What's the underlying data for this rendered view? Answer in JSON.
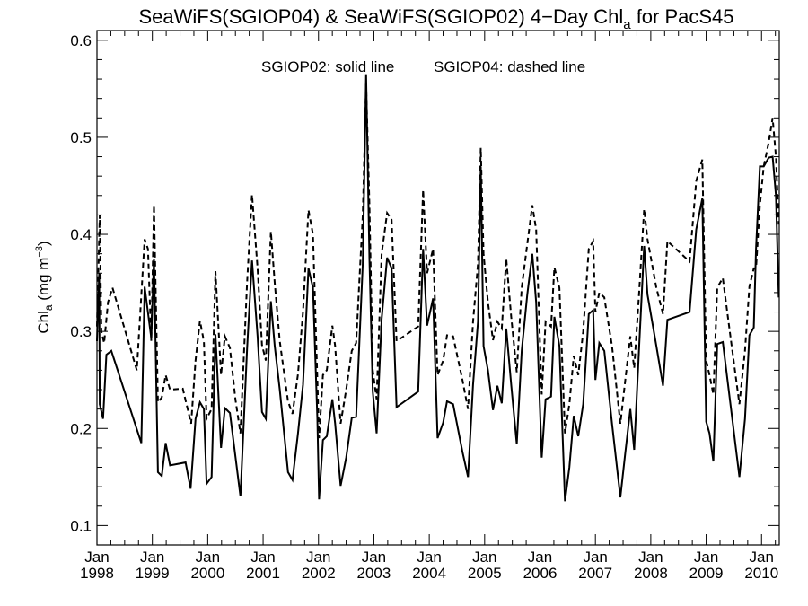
{
  "chart_data": {
    "type": "line",
    "title_main": "SeaWiFS(SGIOP04) & SeaWiFS(SGIOP02) 4−Day Chl",
    "title_sub": "a",
    "title_tail": " for PacS45",
    "ylabel_main": "Chl",
    "ylabel_sub": "a",
    "ylabel_unit": " (mg m",
    "ylabel_sup": "−3",
    "ylabel_close": ")",
    "annotation_solid": "SGIOP02: solid line",
    "annotation_dashed": "SGIOP04: dashed line",
    "xlim": [
      1998.0,
      2010.32
    ],
    "ylim": [
      0.08,
      0.61
    ],
    "y_ticks": [
      0.1,
      0.2,
      0.3,
      0.4,
      0.5,
      0.6
    ],
    "y_tick_labels": [
      "0.1",
      "0.2",
      "0.3",
      "0.4",
      "0.5",
      "0.6"
    ],
    "x_ticks": [
      1998,
      1999,
      2000,
      2001,
      2002,
      2003,
      2004,
      2005,
      2006,
      2007,
      2008,
      2009,
      2010
    ],
    "x_tick_month": "Jan",
    "x_tick_years": [
      "1998",
      "1999",
      "2000",
      "2001",
      "2002",
      "2003",
      "2004",
      "2005",
      "2006",
      "2007",
      "2008",
      "2009",
      "2010"
    ],
    "series": [
      {
        "name": "SGIOP02",
        "style": "solid",
        "points": [
          [
            1998.0,
            0.29
          ],
          [
            1998.04,
            0.36
          ],
          [
            1998.05,
            0.225
          ],
          [
            1998.11,
            0.21
          ],
          [
            1998.17,
            0.276
          ],
          [
            1998.26,
            0.28
          ],
          [
            1998.8,
            0.185
          ],
          [
            1998.86,
            0.346
          ],
          [
            1998.98,
            0.293
          ],
          [
            1999.03,
            0.375
          ],
          [
            1999.1,
            0.155
          ],
          [
            1999.17,
            0.151
          ],
          [
            1999.24,
            0.185
          ],
          [
            1999.32,
            0.162
          ],
          [
            1999.6,
            0.165
          ],
          [
            1999.69,
            0.138
          ],
          [
            1999.78,
            0.21
          ],
          [
            1999.86,
            0.227
          ],
          [
            1999.93,
            0.22
          ],
          [
            1999.98,
            0.143
          ],
          [
            2000.07,
            0.15
          ],
          [
            2000.14,
            0.297
          ],
          [
            2000.24,
            0.18
          ],
          [
            2000.31,
            0.221
          ],
          [
            2000.4,
            0.216
          ],
          [
            2000.48,
            0.18
          ],
          [
            2000.59,
            0.13
          ],
          [
            2000.71,
            0.282
          ],
          [
            2000.8,
            0.373
          ],
          [
            2000.9,
            0.295
          ],
          [
            2000.98,
            0.217
          ],
          [
            2001.05,
            0.21
          ],
          [
            2001.14,
            0.331
          ],
          [
            2001.21,
            0.285
          ],
          [
            2001.3,
            0.24
          ],
          [
            2001.45,
            0.155
          ],
          [
            2001.53,
            0.147
          ],
          [
            2001.63,
            0.195
          ],
          [
            2001.72,
            0.245
          ],
          [
            2001.82,
            0.365
          ],
          [
            2001.9,
            0.345
          ],
          [
            2001.98,
            0.21
          ],
          [
            2002.01,
            0.127
          ],
          [
            2002.08,
            0.188
          ],
          [
            2002.15,
            0.192
          ],
          [
            2002.25,
            0.23
          ],
          [
            2002.3,
            0.205
          ],
          [
            2002.4,
            0.141
          ],
          [
            2002.5,
            0.17
          ],
          [
            2002.6,
            0.211
          ],
          [
            2002.68,
            0.212
          ],
          [
            2002.8,
            0.37
          ],
          [
            2002.86,
            0.565
          ],
          [
            2002.92,
            0.375
          ],
          [
            2002.98,
            0.238
          ],
          [
            2003.05,
            0.195
          ],
          [
            2003.14,
            0.313
          ],
          [
            2003.24,
            0.376
          ],
          [
            2003.32,
            0.365
          ],
          [
            2003.41,
            0.222
          ],
          [
            2003.8,
            0.238
          ],
          [
            2003.89,
            0.385
          ],
          [
            2003.96,
            0.306
          ],
          [
            2004.07,
            0.334
          ],
          [
            2004.15,
            0.19
          ],
          [
            2004.25,
            0.206
          ],
          [
            2004.32,
            0.228
          ],
          [
            2004.43,
            0.225
          ],
          [
            2004.6,
            0.176
          ],
          [
            2004.7,
            0.15
          ],
          [
            2004.79,
            0.245
          ],
          [
            2004.88,
            0.31
          ],
          [
            2004.93,
            0.47
          ],
          [
            2004.98,
            0.285
          ],
          [
            2005.06,
            0.26
          ],
          [
            2005.15,
            0.219
          ],
          [
            2005.23,
            0.244
          ],
          [
            2005.31,
            0.226
          ],
          [
            2005.39,
            0.303
          ],
          [
            2005.48,
            0.245
          ],
          [
            2005.58,
            0.184
          ],
          [
            2005.67,
            0.28
          ],
          [
            2005.77,
            0.338
          ],
          [
            2005.86,
            0.38
          ],
          [
            2005.93,
            0.33
          ],
          [
            2006.03,
            0.17
          ],
          [
            2006.1,
            0.23
          ],
          [
            2006.2,
            0.233
          ],
          [
            2006.26,
            0.315
          ],
          [
            2006.35,
            0.285
          ],
          [
            2006.45,
            0.125
          ],
          [
            2006.53,
            0.16
          ],
          [
            2006.61,
            0.213
          ],
          [
            2006.69,
            0.192
          ],
          [
            2006.78,
            0.225
          ],
          [
            2006.88,
            0.318
          ],
          [
            2006.96,
            0.322
          ],
          [
            2007.0,
            0.25
          ],
          [
            2007.07,
            0.288
          ],
          [
            2007.16,
            0.28
          ],
          [
            2007.3,
            0.205
          ],
          [
            2007.45,
            0.129
          ],
          [
            2007.54,
            0.175
          ],
          [
            2007.63,
            0.22
          ],
          [
            2007.7,
            0.178
          ],
          [
            2007.79,
            0.284
          ],
          [
            2007.88,
            0.388
          ],
          [
            2007.94,
            0.338
          ],
          [
            2008.1,
            0.285
          ],
          [
            2008.22,
            0.244
          ],
          [
            2008.3,
            0.312
          ],
          [
            2008.7,
            0.32
          ],
          [
            2008.82,
            0.405
          ],
          [
            2008.93,
            0.437
          ],
          [
            2009.0,
            0.207
          ],
          [
            2009.06,
            0.195
          ],
          [
            2009.13,
            0.166
          ],
          [
            2009.2,
            0.287
          ],
          [
            2009.3,
            0.289
          ],
          [
            2009.45,
            0.22
          ],
          [
            2009.6,
            0.15
          ],
          [
            2009.7,
            0.21
          ],
          [
            2009.78,
            0.296
          ],
          [
            2009.86,
            0.304
          ],
          [
            2009.9,
            0.385
          ],
          [
            2009.97,
            0.47
          ],
          [
            2010.04,
            0.47
          ],
          [
            2010.13,
            0.479
          ],
          [
            2010.2,
            0.48
          ],
          [
            2010.26,
            0.44
          ],
          [
            2010.31,
            0.335
          ]
        ]
      },
      {
        "name": "SGIOP04",
        "style": "dashed",
        "points": [
          [
            1998.0,
            0.305
          ],
          [
            1998.05,
            0.42
          ],
          [
            1998.08,
            0.3
          ],
          [
            1998.13,
            0.288
          ],
          [
            1998.2,
            0.33
          ],
          [
            1998.28,
            0.345
          ],
          [
            1998.72,
            0.26
          ],
          [
            1998.86,
            0.395
          ],
          [
            1998.92,
            0.385
          ],
          [
            1998.98,
            0.29
          ],
          [
            1999.03,
            0.43
          ],
          [
            1999.1,
            0.227
          ],
          [
            1999.17,
            0.232
          ],
          [
            1999.24,
            0.255
          ],
          [
            1999.32,
            0.24
          ],
          [
            1999.55,
            0.241
          ],
          [
            1999.7,
            0.205
          ],
          [
            1999.78,
            0.27
          ],
          [
            1999.86,
            0.311
          ],
          [
            1999.93,
            0.29
          ],
          [
            1999.98,
            0.21
          ],
          [
            2000.07,
            0.22
          ],
          [
            2000.14,
            0.362
          ],
          [
            2000.24,
            0.255
          ],
          [
            2000.31,
            0.295
          ],
          [
            2000.4,
            0.283
          ],
          [
            2000.5,
            0.23
          ],
          [
            2000.59,
            0.195
          ],
          [
            2000.71,
            0.35
          ],
          [
            2000.8,
            0.441
          ],
          [
            2000.9,
            0.365
          ],
          [
            2000.98,
            0.286
          ],
          [
            2001.05,
            0.27
          ],
          [
            2001.14,
            0.403
          ],
          [
            2001.21,
            0.35
          ],
          [
            2001.3,
            0.29
          ],
          [
            2001.45,
            0.228
          ],
          [
            2001.53,
            0.215
          ],
          [
            2001.63,
            0.256
          ],
          [
            2001.72,
            0.32
          ],
          [
            2001.82,
            0.425
          ],
          [
            2001.9,
            0.4
          ],
          [
            2001.98,
            0.25
          ],
          [
            2002.01,
            0.19
          ],
          [
            2002.08,
            0.255
          ],
          [
            2002.15,
            0.26
          ],
          [
            2002.25,
            0.306
          ],
          [
            2002.3,
            0.285
          ],
          [
            2002.4,
            0.205
          ],
          [
            2002.5,
            0.24
          ],
          [
            2002.6,
            0.28
          ],
          [
            2002.68,
            0.288
          ],
          [
            2002.8,
            0.42
          ],
          [
            2002.86,
            0.555
          ],
          [
            2002.92,
            0.43
          ],
          [
            2002.98,
            0.26
          ],
          [
            2003.05,
            0.23
          ],
          [
            2003.14,
            0.38
          ],
          [
            2003.24,
            0.422
          ],
          [
            2003.32,
            0.415
          ],
          [
            2003.41,
            0.29
          ],
          [
            2003.8,
            0.305
          ],
          [
            2003.89,
            0.446
          ],
          [
            2003.96,
            0.36
          ],
          [
            2004.07,
            0.385
          ],
          [
            2004.15,
            0.255
          ],
          [
            2004.25,
            0.27
          ],
          [
            2004.32,
            0.296
          ],
          [
            2004.43,
            0.295
          ],
          [
            2004.6,
            0.25
          ],
          [
            2004.7,
            0.22
          ],
          [
            2004.79,
            0.31
          ],
          [
            2004.88,
            0.37
          ],
          [
            2004.93,
            0.489
          ],
          [
            2004.98,
            0.38
          ],
          [
            2005.06,
            0.33
          ],
          [
            2005.15,
            0.291
          ],
          [
            2005.23,
            0.31
          ],
          [
            2005.31,
            0.303
          ],
          [
            2005.39,
            0.375
          ],
          [
            2005.48,
            0.315
          ],
          [
            2005.58,
            0.258
          ],
          [
            2005.67,
            0.345
          ],
          [
            2005.77,
            0.39
          ],
          [
            2005.86,
            0.43
          ],
          [
            2005.93,
            0.405
          ],
          [
            2006.03,
            0.235
          ],
          [
            2006.1,
            0.31
          ],
          [
            2006.2,
            0.305
          ],
          [
            2006.26,
            0.366
          ],
          [
            2006.35,
            0.345
          ],
          [
            2006.45,
            0.195
          ],
          [
            2006.53,
            0.225
          ],
          [
            2006.61,
            0.275
          ],
          [
            2006.69,
            0.255
          ],
          [
            2006.78,
            0.3
          ],
          [
            2006.88,
            0.385
          ],
          [
            2006.96,
            0.393
          ],
          [
            2007.0,
            0.32
          ],
          [
            2007.07,
            0.34
          ],
          [
            2007.16,
            0.335
          ],
          [
            2007.3,
            0.285
          ],
          [
            2007.45,
            0.205
          ],
          [
            2007.54,
            0.25
          ],
          [
            2007.63,
            0.295
          ],
          [
            2007.7,
            0.262
          ],
          [
            2007.79,
            0.34
          ],
          [
            2007.88,
            0.426
          ],
          [
            2007.94,
            0.395
          ],
          [
            2008.1,
            0.345
          ],
          [
            2008.22,
            0.318
          ],
          [
            2008.3,
            0.393
          ],
          [
            2008.7,
            0.372
          ],
          [
            2008.82,
            0.455
          ],
          [
            2008.93,
            0.477
          ],
          [
            2009.0,
            0.27
          ],
          [
            2009.06,
            0.255
          ],
          [
            2009.13,
            0.235
          ],
          [
            2009.2,
            0.345
          ],
          [
            2009.3,
            0.355
          ],
          [
            2009.45,
            0.29
          ],
          [
            2009.6,
            0.225
          ],
          [
            2009.7,
            0.28
          ],
          [
            2009.78,
            0.346
          ],
          [
            2009.86,
            0.365
          ],
          [
            2009.9,
            0.365
          ],
          [
            2009.97,
            0.43
          ],
          [
            2010.04,
            0.47
          ],
          [
            2010.13,
            0.495
          ],
          [
            2010.2,
            0.52
          ],
          [
            2010.26,
            0.48
          ],
          [
            2010.31,
            0.41
          ]
        ]
      }
    ]
  }
}
